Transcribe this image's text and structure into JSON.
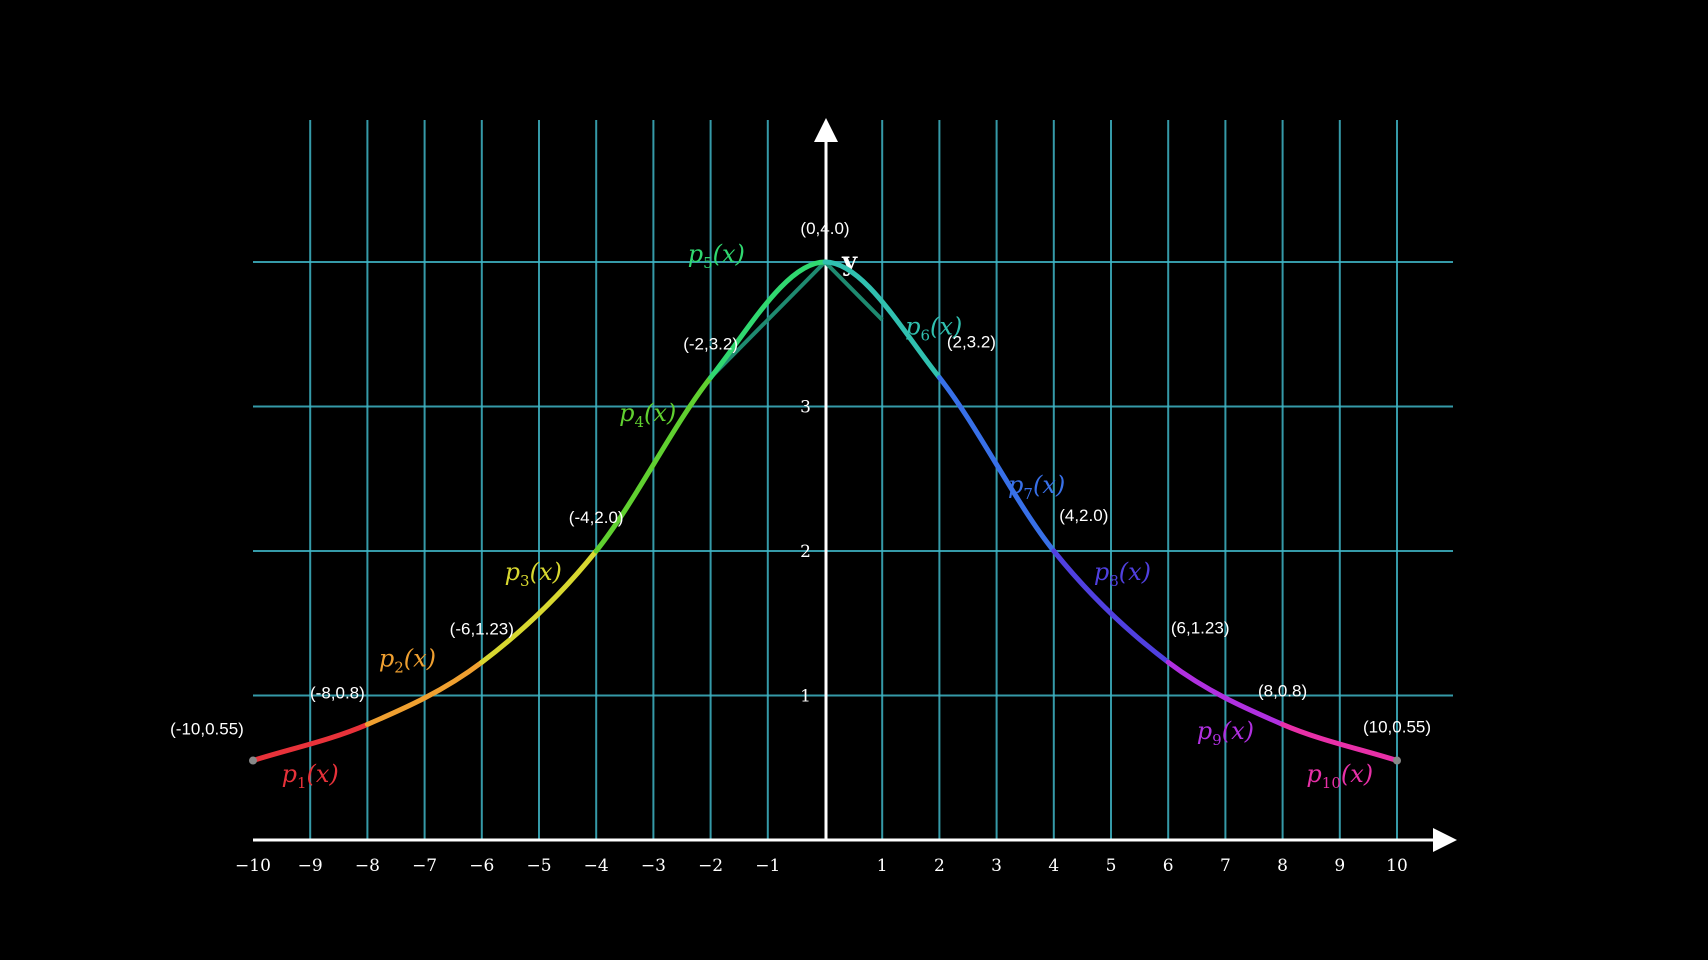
{
  "chart_data": {
    "type": "line",
    "title": "",
    "xlabel": "",
    "ylabel": "y",
    "xlim": [
      -10,
      10
    ],
    "ylim": [
      0,
      4
    ],
    "x_ticks": [
      "−10",
      "−9",
      "−8",
      "−7",
      "−6",
      "−5",
      "−4",
      "−3",
      "−2",
      "−1",
      "1",
      "2",
      "3",
      "4",
      "5",
      "6",
      "7",
      "8",
      "9",
      "10"
    ],
    "x_tick_values": [
      -10,
      -9,
      -8,
      -7,
      -6,
      -5,
      -4,
      -3,
      -2,
      -1,
      1,
      2,
      3,
      4,
      5,
      6,
      7,
      8,
      9,
      10
    ],
    "y_ticks": [
      "1",
      "2",
      "3"
    ],
    "y_tick_values": [
      1,
      2,
      3
    ],
    "grid": true,
    "knots": [
      {
        "x": -10,
        "y": 0.55,
        "label": "(-10,0.55)"
      },
      {
        "x": -8,
        "y": 0.8,
        "label": "(-8,0.8)"
      },
      {
        "x": -6,
        "y": 1.23,
        "label": "(-6,1.23)"
      },
      {
        "x": -4,
        "y": 2.0,
        "label": "(-4,2.0)"
      },
      {
        "x": -2,
        "y": 3.2,
        "label": "(-2,3.2)"
      },
      {
        "x": 0,
        "y": 4.0,
        "label": "(0,4.0)"
      },
      {
        "x": 2,
        "y": 3.2,
        "label": "(2,3.2)"
      },
      {
        "x": 4,
        "y": 2.0,
        "label": "(4,2.0)"
      },
      {
        "x": 6,
        "y": 1.23,
        "label": "(6,1.23)"
      },
      {
        "x": 8,
        "y": 0.8,
        "label": "(8,0.8)"
      },
      {
        "x": 10,
        "y": 0.55,
        "label": "(10,0.55)"
      }
    ],
    "series": [
      {
        "name": "p1(x)",
        "base": "p",
        "sub": "1",
        "color": "#e8323a",
        "x_range": [
          -10,
          -8
        ]
      },
      {
        "name": "p2(x)",
        "base": "p",
        "sub": "2",
        "color": "#f0a030",
        "x_range": [
          -8,
          -6
        ]
      },
      {
        "name": "p3(x)",
        "base": "p",
        "sub": "3",
        "color": "#d8d830",
        "x_range": [
          -6,
          -4
        ]
      },
      {
        "name": "p4(x)",
        "base": "p",
        "sub": "4",
        "color": "#60d030",
        "x_range": [
          -4,
          -2
        ]
      },
      {
        "name": "p5(x)",
        "base": "p",
        "sub": "5",
        "color": "#30d870",
        "x_range": [
          -2,
          0
        ]
      },
      {
        "name": "p6(x)",
        "base": "p",
        "sub": "6",
        "color": "#30c0b0",
        "x_range": [
          0,
          2
        ]
      },
      {
        "name": "p7(x)",
        "base": "p",
        "sub": "7",
        "color": "#3870e8",
        "x_range": [
          2,
          4
        ]
      },
      {
        "name": "p8(x)",
        "base": "p",
        "sub": "8",
        "color": "#5040e0",
        "x_range": [
          4,
          6
        ]
      },
      {
        "name": "p9(x)",
        "base": "p",
        "sub": "9",
        "color": "#b030e0",
        "x_range": [
          6,
          8
        ]
      },
      {
        "name": "p10(x)",
        "base": "p",
        "sub": "10",
        "color": "#e830a8",
        "x_range": [
          8,
          10
        ]
      }
    ],
    "linear_segments": [
      {
        "x": [
          -2,
          0
        ],
        "y": [
          3.2,
          4.0
        ],
        "color": "#1e8a70"
      },
      {
        "x": [
          0,
          1
        ],
        "y": [
          4.0,
          3.6
        ],
        "color": "#1e8a70"
      }
    ]
  }
}
